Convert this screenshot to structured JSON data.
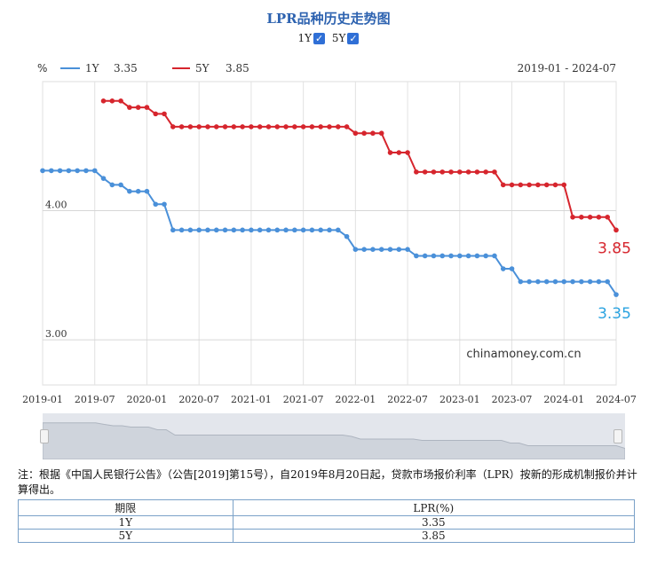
{
  "title": "LPR品种历史走势图",
  "toggles": [
    {
      "label": "1Y",
      "checked": true,
      "check_glyph": "✓"
    },
    {
      "label": "5Y",
      "checked": true,
      "check_glyph": "✓"
    }
  ],
  "colors": {
    "series_1y": "#4a90d9",
    "series_5y": "#d6252d",
    "title": "#2e63b0"
  },
  "chart_data": {
    "type": "line",
    "unit_label": "%",
    "date_range": "2019-01 - 2024-07",
    "watermark": "chinamoney.com.cn",
    "legend_placement": "top-left",
    "ylim": [
      2.65,
      5.0
    ],
    "y_ticks": [
      {
        "value": 4.0,
        "label": "4.00"
      },
      {
        "value": 3.0,
        "label": "3.00"
      }
    ],
    "x_ticks": [
      "2019-01",
      "2019-07",
      "2020-01",
      "2020-07",
      "2021-01",
      "2021-07",
      "2022-01",
      "2022-07",
      "2023-01",
      "2023-07",
      "2024-01",
      "2024-07"
    ],
    "grid": true,
    "series": [
      {
        "name": "1Y",
        "current": "3.35",
        "end_label": "3.35",
        "color": "#4a90d9",
        "points": [
          [
            "2019-01",
            4.31
          ],
          [
            "2019-02",
            4.31
          ],
          [
            "2019-03",
            4.31
          ],
          [
            "2019-04",
            4.31
          ],
          [
            "2019-05",
            4.31
          ],
          [
            "2019-06",
            4.31
          ],
          [
            "2019-07",
            4.31
          ],
          [
            "2019-08",
            4.25
          ],
          [
            "2019-09",
            4.2
          ],
          [
            "2019-10",
            4.2
          ],
          [
            "2019-11",
            4.15
          ],
          [
            "2019-12",
            4.15
          ],
          [
            "2020-01",
            4.15
          ],
          [
            "2020-02",
            4.05
          ],
          [
            "2020-03",
            4.05
          ],
          [
            "2020-04",
            3.85
          ],
          [
            "2020-05",
            3.85
          ],
          [
            "2020-06",
            3.85
          ],
          [
            "2020-07",
            3.85
          ],
          [
            "2020-08",
            3.85
          ],
          [
            "2020-09",
            3.85
          ],
          [
            "2020-10",
            3.85
          ],
          [
            "2020-11",
            3.85
          ],
          [
            "2020-12",
            3.85
          ],
          [
            "2021-01",
            3.85
          ],
          [
            "2021-02",
            3.85
          ],
          [
            "2021-03",
            3.85
          ],
          [
            "2021-04",
            3.85
          ],
          [
            "2021-05",
            3.85
          ],
          [
            "2021-06",
            3.85
          ],
          [
            "2021-07",
            3.85
          ],
          [
            "2021-08",
            3.85
          ],
          [
            "2021-09",
            3.85
          ],
          [
            "2021-10",
            3.85
          ],
          [
            "2021-11",
            3.85
          ],
          [
            "2021-12",
            3.8
          ],
          [
            "2022-01",
            3.7
          ],
          [
            "2022-02",
            3.7
          ],
          [
            "2022-03",
            3.7
          ],
          [
            "2022-04",
            3.7
          ],
          [
            "2022-05",
            3.7
          ],
          [
            "2022-06",
            3.7
          ],
          [
            "2022-07",
            3.7
          ],
          [
            "2022-08",
            3.65
          ],
          [
            "2022-09",
            3.65
          ],
          [
            "2022-10",
            3.65
          ],
          [
            "2022-11",
            3.65
          ],
          [
            "2022-12",
            3.65
          ],
          [
            "2023-01",
            3.65
          ],
          [
            "2023-02",
            3.65
          ],
          [
            "2023-03",
            3.65
          ],
          [
            "2023-04",
            3.65
          ],
          [
            "2023-05",
            3.65
          ],
          [
            "2023-06",
            3.55
          ],
          [
            "2023-07",
            3.55
          ],
          [
            "2023-08",
            3.45
          ],
          [
            "2023-09",
            3.45
          ],
          [
            "2023-10",
            3.45
          ],
          [
            "2023-11",
            3.45
          ],
          [
            "2023-12",
            3.45
          ],
          [
            "2024-01",
            3.45
          ],
          [
            "2024-02",
            3.45
          ],
          [
            "2024-03",
            3.45
          ],
          [
            "2024-04",
            3.45
          ],
          [
            "2024-05",
            3.45
          ],
          [
            "2024-06",
            3.45
          ],
          [
            "2024-07",
            3.35
          ]
        ]
      },
      {
        "name": "5Y",
        "current": "3.85",
        "end_label": "3.85",
        "color": "#d6252d",
        "points": [
          [
            "2019-08",
            4.85
          ],
          [
            "2019-09",
            4.85
          ],
          [
            "2019-10",
            4.85
          ],
          [
            "2019-11",
            4.8
          ],
          [
            "2019-12",
            4.8
          ],
          [
            "2020-01",
            4.8
          ],
          [
            "2020-02",
            4.75
          ],
          [
            "2020-03",
            4.75
          ],
          [
            "2020-04",
            4.65
          ],
          [
            "2020-05",
            4.65
          ],
          [
            "2020-06",
            4.65
          ],
          [
            "2020-07",
            4.65
          ],
          [
            "2020-08",
            4.65
          ],
          [
            "2020-09",
            4.65
          ],
          [
            "2020-10",
            4.65
          ],
          [
            "2020-11",
            4.65
          ],
          [
            "2020-12",
            4.65
          ],
          [
            "2021-01",
            4.65
          ],
          [
            "2021-02",
            4.65
          ],
          [
            "2021-03",
            4.65
          ],
          [
            "2021-04",
            4.65
          ],
          [
            "2021-05",
            4.65
          ],
          [
            "2021-06",
            4.65
          ],
          [
            "2021-07",
            4.65
          ],
          [
            "2021-08",
            4.65
          ],
          [
            "2021-09",
            4.65
          ],
          [
            "2021-10",
            4.65
          ],
          [
            "2021-11",
            4.65
          ],
          [
            "2021-12",
            4.65
          ],
          [
            "2022-01",
            4.6
          ],
          [
            "2022-02",
            4.6
          ],
          [
            "2022-03",
            4.6
          ],
          [
            "2022-04",
            4.6
          ],
          [
            "2022-05",
            4.45
          ],
          [
            "2022-06",
            4.45
          ],
          [
            "2022-07",
            4.45
          ],
          [
            "2022-08",
            4.3
          ],
          [
            "2022-09",
            4.3
          ],
          [
            "2022-10",
            4.3
          ],
          [
            "2022-11",
            4.3
          ],
          [
            "2022-12",
            4.3
          ],
          [
            "2023-01",
            4.3
          ],
          [
            "2023-02",
            4.3
          ],
          [
            "2023-03",
            4.3
          ],
          [
            "2023-04",
            4.3
          ],
          [
            "2023-05",
            4.3
          ],
          [
            "2023-06",
            4.2
          ],
          [
            "2023-07",
            4.2
          ],
          [
            "2023-08",
            4.2
          ],
          [
            "2023-09",
            4.2
          ],
          [
            "2023-10",
            4.2
          ],
          [
            "2023-11",
            4.2
          ],
          [
            "2023-12",
            4.2
          ],
          [
            "2024-01",
            4.2
          ],
          [
            "2024-02",
            3.95
          ],
          [
            "2024-03",
            3.95
          ],
          [
            "2024-04",
            3.95
          ],
          [
            "2024-05",
            3.95
          ],
          [
            "2024-06",
            3.95
          ],
          [
            "2024-07",
            3.85
          ]
        ]
      }
    ]
  },
  "note": "注：根据《中国人民银行公告》（公告[2019]第15号），自2019年8月20日起，贷款市场报价利率（LPR）按新的形成机制报价并计算得出。",
  "table": {
    "headers": [
      "期限",
      "LPR(%)"
    ],
    "rows": [
      [
        "1Y",
        "3.35"
      ],
      [
        "5Y",
        "3.85"
      ]
    ]
  }
}
